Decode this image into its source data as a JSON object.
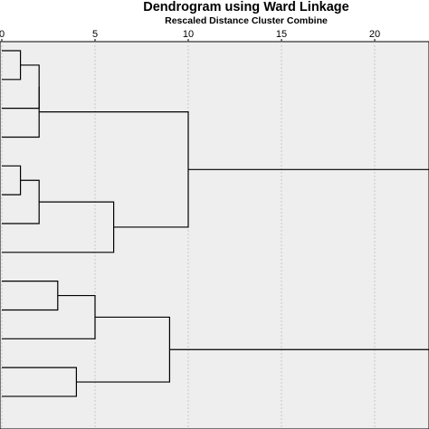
{
  "chart_data": {
    "type": "dendrogram",
    "title": "Dendrogram using Ward Linkage",
    "subtitle": "Rescaled Distance Cluster Combine",
    "orientation": "horizontal",
    "x_ticks": [
      0,
      5,
      10,
      15,
      20
    ],
    "xlim": [
      0,
      25
    ],
    "grid": "vertical",
    "leaves": 13,
    "merges": [
      {
        "a": {
          "leaf": 0
        },
        "b": {
          "leaf": 1
        },
        "distance": 1
      },
      {
        "a": {
          "merge": 0
        },
        "b": {
          "leaf": 2
        },
        "distance": 2
      },
      {
        "a": {
          "merge": 1
        },
        "b": {
          "leaf": 3
        },
        "distance": 2
      },
      {
        "a": {
          "leaf": 4
        },
        "b": {
          "leaf": 5
        },
        "distance": 1
      },
      {
        "a": {
          "merge": 3
        },
        "b": {
          "leaf": 6
        },
        "distance": 2
      },
      {
        "a": {
          "merge": 4
        },
        "b": {
          "leaf": 7
        },
        "distance": 6
      },
      {
        "a": {
          "merge": 2
        },
        "b": {
          "merge": 5
        },
        "distance": 10
      },
      {
        "a": {
          "leaf": 8
        },
        "b": {
          "leaf": 9
        },
        "distance": 3
      },
      {
        "a": {
          "merge": 7
        },
        "b": {
          "leaf": 10
        },
        "distance": 5
      },
      {
        "a": {
          "leaf": 11
        },
        "b": {
          "leaf": 12
        },
        "distance": 4
      },
      {
        "a": {
          "merge": 8
        },
        "b": {
          "merge": 9
        },
        "distance": 9
      },
      {
        "a": {
          "merge": 6
        },
        "b": {
          "merge": 10
        },
        "distance": 25
      }
    ]
  }
}
